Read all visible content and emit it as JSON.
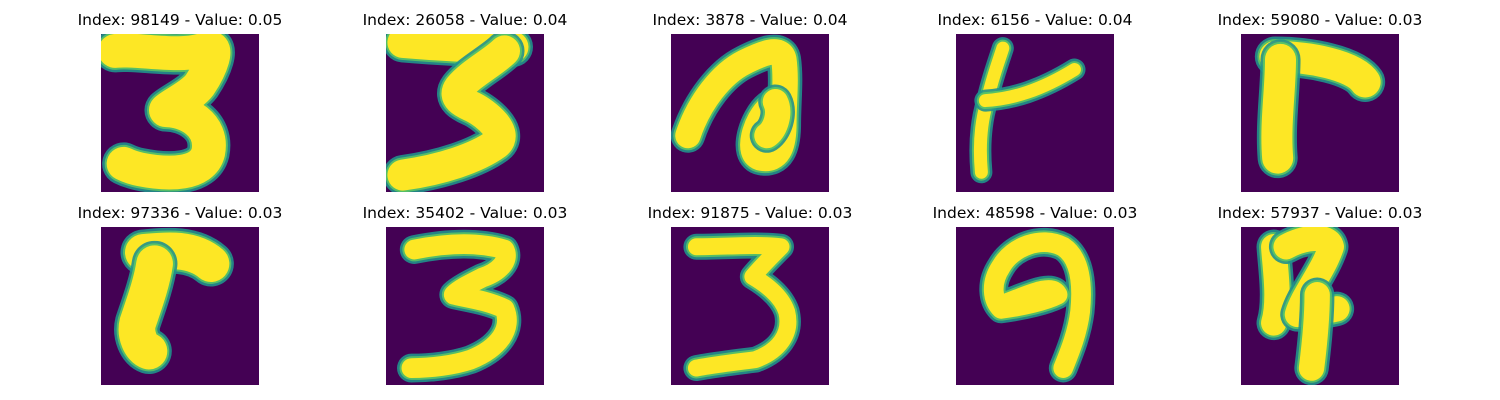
{
  "colors": {
    "background": "#440154",
    "mid": "#21918c",
    "stroke": "#fde725",
    "accent": "#5ec962"
  },
  "panels": [
    {
      "title": "Index: 98149 - Value: 0.05",
      "depicts": "digit-3"
    },
    {
      "title": "Index: 26058 - Value: 0.04",
      "depicts": "digit-3"
    },
    {
      "title": "Index: 3878 - Value: 0.04",
      "depicts": "curled-loop"
    },
    {
      "title": "Index: 6156 - Value: 0.04",
      "depicts": "digit-4-like"
    },
    {
      "title": "Index: 59080 - Value: 0.03",
      "depicts": "digit-7-like"
    },
    {
      "title": "Index: 97336 - Value: 0.03",
      "depicts": "digit-7-like"
    },
    {
      "title": "Index: 35402 - Value: 0.03",
      "depicts": "digit-3"
    },
    {
      "title": "Index: 91875 - Value: 0.03",
      "depicts": "digit-3"
    },
    {
      "title": "Index: 48598 - Value: 0.03",
      "depicts": "digit-9-like"
    },
    {
      "title": "Index: 57937 - Value: 0.03",
      "depicts": "digit-4"
    }
  ]
}
